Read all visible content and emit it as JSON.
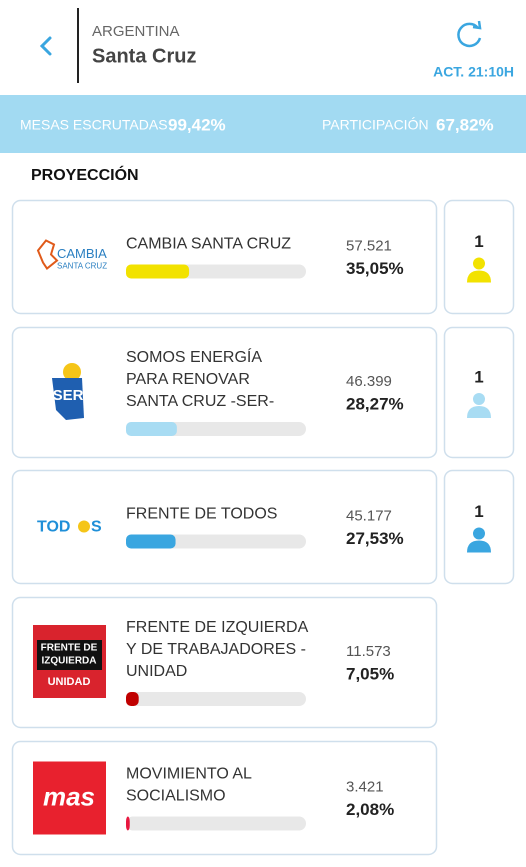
{
  "header": {
    "country": "ARGENTINA",
    "province": "Santa Cruz",
    "update": "ACT. 21:10H"
  },
  "stats": {
    "mesas_label": "MESAS ESCRUTADAS",
    "mesas_value": "99,42%",
    "participacion_label": "PARTICIPACIÓN",
    "participacion_value": "67,82%"
  },
  "section_title": "PROYECCIÓN",
  "bar_range": [
    0,
    100
  ],
  "parties": [
    {
      "name_lines": [
        "CAMBIA SANTA CRUZ"
      ],
      "votes": "57.521",
      "percent": 35.05,
      "percent_label": "35,05%",
      "color": "#f2e200",
      "seats": "1",
      "logo": [
        "CAMBIA",
        "SANTA CRUZ"
      ]
    },
    {
      "name_lines": [
        "SOMOS ENERGÍA",
        "PARA RENOVAR",
        "SANTA CRUZ -SER-"
      ],
      "votes": "46.399",
      "percent": 28.27,
      "percent_label": "28,27%",
      "color": "#a8dcf3",
      "seats": "1",
      "logo": [
        "SER"
      ]
    },
    {
      "name_lines": [
        "FRENTE DE TODOS"
      ],
      "votes": "45.177",
      "percent": 27.53,
      "percent_label": "27,53%",
      "color": "#3aa6e0",
      "seats": "1",
      "logo": [
        "TOD",
        "S"
      ]
    },
    {
      "name_lines": [
        "FRENTE DE IZQUIERDA",
        "Y DE TRABAJADORES -",
        "UNIDAD"
      ],
      "votes": "11.573",
      "percent": 7.05,
      "percent_label": "7,05%",
      "color": "#c00000",
      "logo": [
        "FRENTE DE",
        "IZQUIERDA",
        "UNIDAD"
      ]
    },
    {
      "name_lines": [
        "MOVIMIENTO AL",
        "SOCIALISMO"
      ],
      "votes": "3.421",
      "percent": 2.08,
      "percent_label": "2,08%",
      "color": "#e8173f",
      "logo": [
        "mas"
      ]
    }
  ]
}
